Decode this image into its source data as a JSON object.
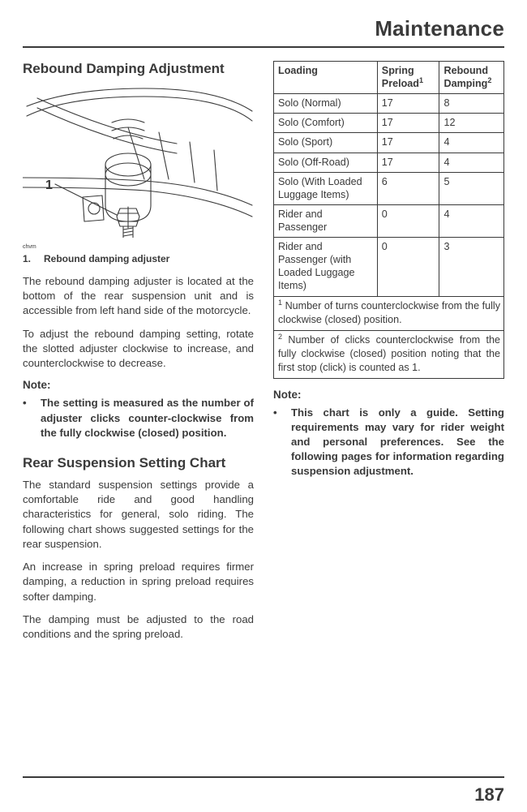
{
  "header": {
    "title": "Maintenance"
  },
  "pageNumber": "187",
  "left": {
    "sectionTitle": "Rebound Damping Adjustment",
    "figure": {
      "refLabelNum": "1",
      "tinyLabel": "chvm",
      "captionNum": "1.",
      "captionText": "Rebound damping adjuster",
      "stroke": "#3a3a3a",
      "lineWidth": 1.1
    },
    "para1": "The rebound damping adjuster is located at the bottom of the rear suspension unit and is accessible from left hand side of the motorcycle.",
    "para2": "To adjust the rebound damping setting, rotate the slotted adjuster clockwise to increase, and counterclockwise to decrease.",
    "noteHeading": "Note:",
    "noteItem": "The setting is measured as the number of adjuster clicks counter-clockwise from the fully clockwise (closed) position.",
    "section2Title": "Rear Suspension Setting Chart",
    "para3": "The standard suspension settings provide a comfortable ride and good handling characteristics for general, solo riding. The following chart shows suggested settings for the rear suspension.",
    "para4": "An increase in spring preload requires firmer damping, a reduction in spring preload requires softer damping.",
    "para5": "The damping must be adjusted to the road conditions and the spring preload."
  },
  "right": {
    "table": {
      "headers": {
        "c1": "Loading",
        "c2a": "Spring",
        "c2b": "Preload",
        "c2sup": "1",
        "c3a": "Rebound",
        "c3b": "Damping",
        "c3sup": "2"
      },
      "colWidths": [
        "45%",
        "27%",
        "28%"
      ],
      "rows": [
        {
          "c1": "Solo (Normal)",
          "c2": "17",
          "c3": "8"
        },
        {
          "c1": "Solo (Comfort)",
          "c2": "17",
          "c3": "12"
        },
        {
          "c1": "Solo (Sport)",
          "c2": "17",
          "c3": "4"
        },
        {
          "c1": "Solo (Off-Road)",
          "c2": "17",
          "c3": "4"
        },
        {
          "c1": "Solo (With Loaded Luggage Items)",
          "c2": "6",
          "c3": "5"
        },
        {
          "c1": "Rider and Passenger",
          "c2": "0",
          "c3": "4"
        },
        {
          "c1": "Rider and Passenger (with Loaded Luggage Items)",
          "c2": "0",
          "c3": "3"
        }
      ],
      "foot1sup": "1",
      "foot1": " Number of turns counterclockwise from the fully clockwise (closed) position.",
      "foot2sup": "2",
      "foot2": " Number of clicks counterclockwise from the fully clockwise (closed) position noting that the first stop (click) is counted as 1."
    },
    "noteHeading": "Note:",
    "noteItem": "This chart is only a guide. Setting requirements may vary for rider weight and personal preferences. See the following pages for information regarding suspension adjustment."
  }
}
